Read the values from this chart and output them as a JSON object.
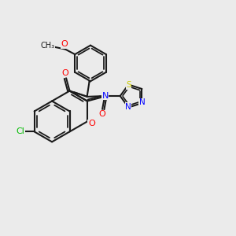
{
  "background_color": "#EBEBEB",
  "bond_color": "#1a1a1a",
  "lw": 1.5,
  "atom_colors": {
    "O": "#FF0000",
    "N": "#0000FF",
    "S": "#CCCC00",
    "Cl": "#00BB00",
    "C": "#1a1a1a"
  }
}
